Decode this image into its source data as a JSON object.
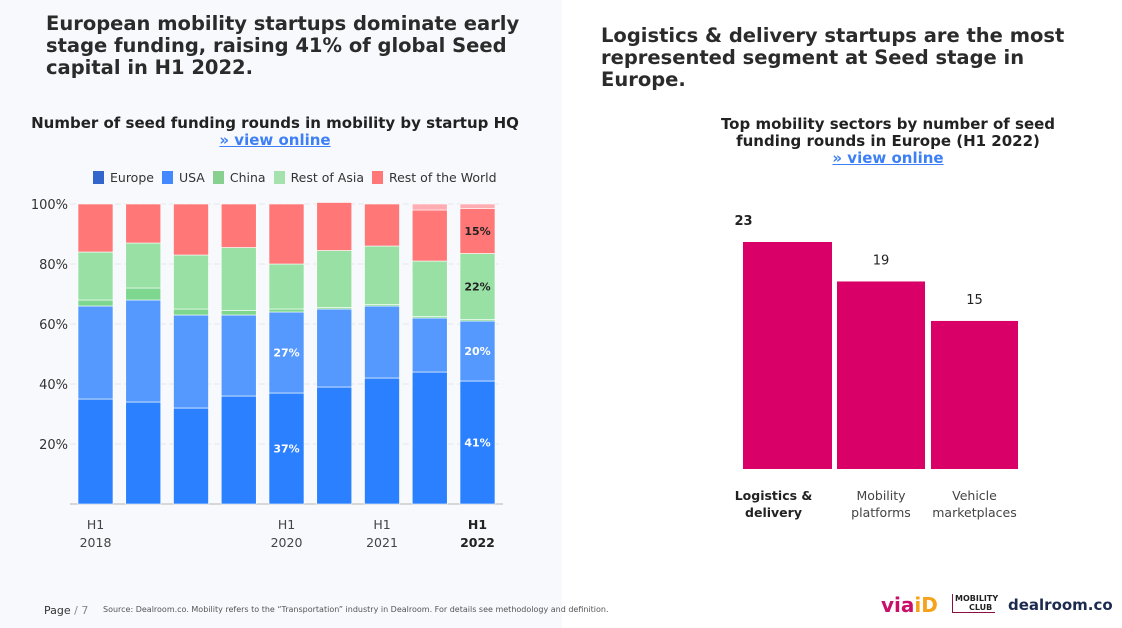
{
  "left": {
    "headline": "European mobility startups dominate early stage funding, raising 41% of global Seed capital in H1 2022."
  },
  "right": {
    "headline": "Logistics & delivery startups are the most represented segment at Seed stage in Europe."
  },
  "footer": {
    "page": "Page",
    "page_num": "/ 7",
    "source": "Source: Dealroom.co.  Mobility refers to the “Transportation” industry in Dealroom. For details see methodology and definition.",
    "logos": [
      "viaID",
      "MOBILITY CLUB",
      "dealroom.co"
    ]
  },
  "chart_data": [
    {
      "type": "bar",
      "stacked": true,
      "title": "Number of seed funding rounds in mobility by startup HQ",
      "link": "» view online",
      "categories": [
        "H1 2018",
        "",
        "",
        "",
        "H1 2020",
        "",
        "H1 2021",
        "",
        "H1 2022"
      ],
      "tick_labels": [
        [
          "H1",
          "2018"
        ],
        [
          "",
          ""
        ],
        [
          "",
          ""
        ],
        [
          "",
          ""
        ],
        [
          "H1",
          "2020"
        ],
        [
          "",
          ""
        ],
        [
          "H1",
          "2021"
        ],
        [
          "",
          ""
        ],
        [
          "H1",
          "2022"
        ]
      ],
      "yticks": [
        "20%",
        "40%",
        "60%",
        "80%",
        "100%"
      ],
      "ylim": [
        0,
        100
      ],
      "legend": "top",
      "series": [
        {
          "name": "Europe",
          "color": "#2a80ff",
          "legend_color": "#3366cc",
          "values": [
            35,
            34,
            32,
            36,
            37,
            39,
            42,
            44,
            41
          ]
        },
        {
          "name": "USA",
          "color": "#5599ff",
          "legend_color": "#4488ff",
          "values": [
            31,
            34,
            31,
            27,
            27,
            26,
            24,
            18,
            20
          ]
        },
        {
          "name": "China",
          "color": "#7dd78f",
          "legend_color": "#88d090",
          "values": [
            2,
            4,
            2,
            1.5,
            1,
            0.5,
            0.5,
            0.5,
            0.5
          ]
        },
        {
          "name": "Rest of Asia",
          "color": "#99e0a5",
          "legend_color": "#a6e2ae",
          "values": [
            16,
            15,
            18,
            21,
            15,
            19,
            19.5,
            18.5,
            22
          ]
        },
        {
          "name": "Rest of the World",
          "color": "#ff7777",
          "legend_color": "#ff7777",
          "values": [
            16,
            13,
            17,
            14.5,
            20,
            16,
            14,
            17,
            15
          ]
        },
        {
          "color": "#ffadb2",
          "values": [
            0,
            0,
            0,
            0,
            0,
            0,
            0,
            2,
            1.5
          ]
        }
      ],
      "data_labels": [
        {
          "bar": 4,
          "series": 0,
          "text": "37%"
        },
        {
          "bar": 4,
          "series": 1,
          "text": "27%"
        },
        {
          "bar": 8,
          "series": 0,
          "text": "41%"
        },
        {
          "bar": 8,
          "series": 1,
          "text": "20%"
        },
        {
          "bar": 8,
          "series": 3,
          "text": "22%"
        },
        {
          "bar": 8,
          "series": 4,
          "text": "15%"
        }
      ]
    },
    {
      "type": "bar",
      "title": "Top mobility sectors by number of seed funding rounds in Europe (H1 2022)",
      "link": "» view online",
      "categories": [
        [
          "Logistics &",
          "delivery"
        ],
        [
          "Mobility",
          "platforms"
        ],
        [
          "Vehicle",
          "marketplaces"
        ]
      ],
      "values": [
        23,
        19,
        15
      ],
      "color": "#d90068"
    }
  ]
}
